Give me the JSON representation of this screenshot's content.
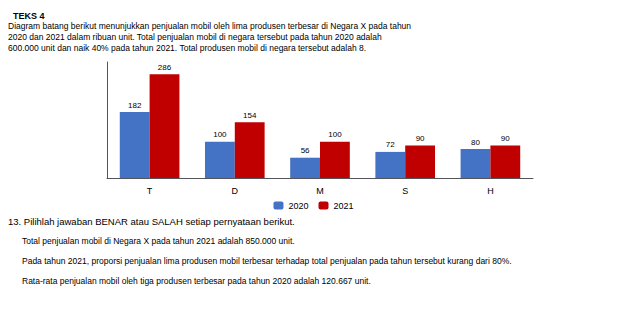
{
  "chart_data": {
    "type": "bar",
    "title": "TEKS 4",
    "annotations": [
      "Diagram batang berikut menunjukkan penjualan mobil oleh lima produsen terbesar di Negara X pada tahun",
      "2020 dan 2021 dalam ribuan unit. Total penjualan mobil di negara tersebut pada tahun 2020 adalah",
      "600.000 unit dan naik 40% pada tahun 2021. Total produsen mobil di negara tersebut adalah 8.",
      "13. Pilihlah jawaban BENAR atau SALAH setiap pernyataan berikut.",
      "Total penjualan mobil di Negara X pada tahun 2021 adalah 850.000 unit.",
      "Pada tahun 2021, proporsi penjualan lima produsen mobil terbesar terhadap total penjualan pada tahun tersebut kurang dari 80%.",
      "Rata-rata penjualan mobil oleh tiga produsen terbesar pada tahun 2020 adalah 120.667 unit."
    ],
    "categories": [
      "T",
      "D",
      "M",
      "S",
      "H"
    ],
    "series": [
      {
        "name": "2020",
        "color": "#4472c4",
        "values": [
          182,
          100,
          56,
          72,
          80
        ]
      },
      {
        "name": "2021",
        "color": "#c00000",
        "values": [
          286,
          154,
          100,
          90,
          90
        ]
      }
    ],
    "ylim": [
      0,
      320
    ],
    "grid": false,
    "legend": "bottom",
    "data_labels": true,
    "tick_labels": "x"
  }
}
